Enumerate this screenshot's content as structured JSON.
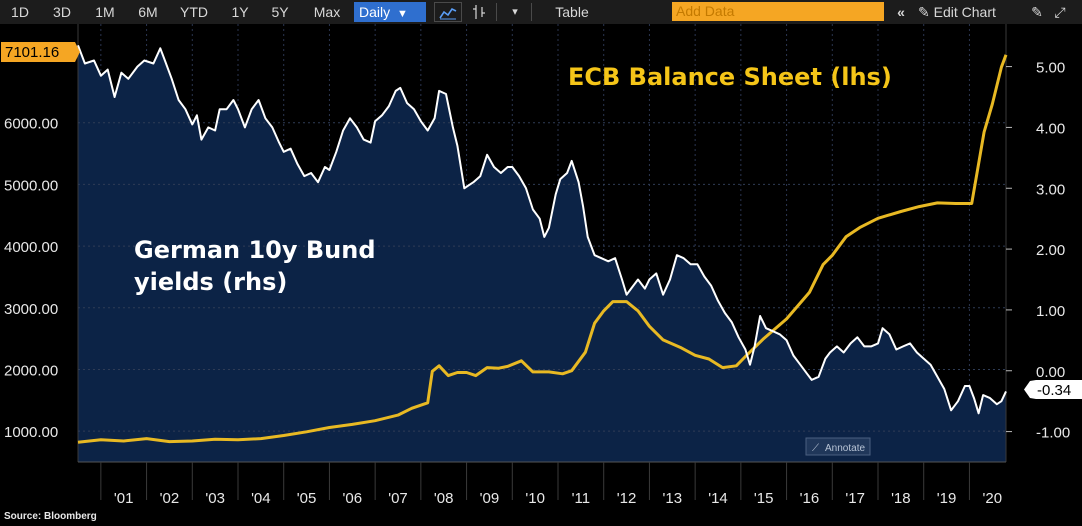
{
  "toolbar": {
    "ranges": [
      "1D",
      "3D",
      "1M",
      "6M",
      "YTD",
      "1Y",
      "5Y",
      "Max"
    ],
    "frequency": "Daily",
    "table_label": "Table",
    "add_data_placeholder": "Add Data",
    "edit_chart_label": "Edit Chart"
  },
  "colors": {
    "background": "#000000",
    "plot_fill": "#0c2346",
    "bund_line": "#ffffff",
    "ecb_line": "#e8b923",
    "last_price_label": "#f5a623"
  },
  "annotate_label": "Annotate",
  "source": "Source: Bloomberg",
  "chart_data": {
    "type": "line",
    "x_tick_labels": [
      "'01",
      "'02",
      "'03",
      "'04",
      "'05",
      "'06",
      "'07",
      "'08",
      "'09",
      "'10",
      "'11",
      "'12",
      "'13",
      "'14",
      "'15",
      "'16",
      "'17",
      "'18",
      "'19",
      "'20"
    ],
    "xlim": [
      2000.5,
      2020.8
    ],
    "y_left": {
      "ylim": [
        500,
        7600
      ],
      "ticks": [
        1000,
        2000,
        3000,
        4000,
        5000,
        6000
      ],
      "tick_labels": [
        "1000.00",
        "2000.00",
        "3000.00",
        "4000.00",
        "5000.00",
        "6000.00"
      ],
      "last_value_label": "7101.16"
    },
    "y_right": {
      "ylim": [
        -1.5,
        5.7
      ],
      "ticks": [
        -1,
        0,
        1,
        2,
        3,
        4,
        5
      ],
      "tick_labels": [
        "-1.00",
        "0.00",
        "1.00",
        "2.00",
        "3.00",
        "4.00",
        "5.00"
      ],
      "last_value_label": "-0.34"
    },
    "annotations": [
      {
        "text": "ECB Balance Sheet (lhs)",
        "color": "#f5c518"
      },
      {
        "text": "German 10y Bund",
        "color": "#ffffff"
      },
      {
        "text": "yields (rhs)",
        "color": "#ffffff"
      }
    ],
    "series": [
      {
        "axis": "right",
        "color": "#ffffff",
        "fill": "#0c2346",
        "points": [
          [
            2000.5,
            5.35
          ],
          [
            2000.65,
            5.05
          ],
          [
            2000.85,
            5.1
          ],
          [
            2001.0,
            4.85
          ],
          [
            2001.15,
            4.95
          ],
          [
            2001.3,
            4.5
          ],
          [
            2001.45,
            4.9
          ],
          [
            2001.6,
            4.8
          ],
          [
            2001.8,
            5.0
          ],
          [
            2001.95,
            5.1
          ],
          [
            2002.15,
            5.05
          ],
          [
            2002.3,
            5.3
          ],
          [
            2002.4,
            5.1
          ],
          [
            2002.55,
            4.8
          ],
          [
            2002.7,
            4.45
          ],
          [
            2002.85,
            4.3
          ],
          [
            2003.0,
            4.05
          ],
          [
            2003.1,
            4.2
          ],
          [
            2003.2,
            3.8
          ],
          [
            2003.35,
            4.0
          ],
          [
            2003.5,
            3.95
          ],
          [
            2003.6,
            4.3
          ],
          [
            2003.75,
            4.3
          ],
          [
            2003.9,
            4.45
          ],
          [
            2004.0,
            4.3
          ],
          [
            2004.15,
            4.0
          ],
          [
            2004.3,
            4.3
          ],
          [
            2004.45,
            4.45
          ],
          [
            2004.6,
            4.15
          ],
          [
            2004.75,
            4.0
          ],
          [
            2004.9,
            3.75
          ],
          [
            2005.0,
            3.6
          ],
          [
            2005.15,
            3.65
          ],
          [
            2005.3,
            3.4
          ],
          [
            2005.45,
            3.2
          ],
          [
            2005.6,
            3.25
          ],
          [
            2005.75,
            3.1
          ],
          [
            2005.9,
            3.35
          ],
          [
            2006.0,
            3.3
          ],
          [
            2006.15,
            3.6
          ],
          [
            2006.3,
            3.95
          ],
          [
            2006.45,
            4.15
          ],
          [
            2006.6,
            4.0
          ],
          [
            2006.75,
            3.8
          ],
          [
            2006.9,
            3.75
          ],
          [
            2007.0,
            4.1
          ],
          [
            2007.15,
            4.2
          ],
          [
            2007.3,
            4.35
          ],
          [
            2007.45,
            4.6
          ],
          [
            2007.55,
            4.65
          ],
          [
            2007.7,
            4.4
          ],
          [
            2007.85,
            4.3
          ],
          [
            2008.0,
            4.1
          ],
          [
            2008.15,
            3.95
          ],
          [
            2008.3,
            4.15
          ],
          [
            2008.4,
            4.6
          ],
          [
            2008.55,
            4.55
          ],
          [
            2008.7,
            4.0
          ],
          [
            2008.8,
            3.7
          ],
          [
            2008.95,
            3.0
          ],
          [
            2009.05,
            3.05
          ],
          [
            2009.15,
            3.1
          ],
          [
            2009.3,
            3.2
          ],
          [
            2009.45,
            3.55
          ],
          [
            2009.6,
            3.35
          ],
          [
            2009.75,
            3.25
          ],
          [
            2009.9,
            3.35
          ],
          [
            2010.0,
            3.35
          ],
          [
            2010.15,
            3.2
          ],
          [
            2010.3,
            3.0
          ],
          [
            2010.45,
            2.65
          ],
          [
            2010.6,
            2.5
          ],
          [
            2010.7,
            2.2
          ],
          [
            2010.8,
            2.35
          ],
          [
            2010.95,
            2.9
          ],
          [
            2011.05,
            3.15
          ],
          [
            2011.2,
            3.25
          ],
          [
            2011.3,
            3.45
          ],
          [
            2011.45,
            3.1
          ],
          [
            2011.55,
            2.7
          ],
          [
            2011.65,
            2.2
          ],
          [
            2011.8,
            1.9
          ],
          [
            2011.95,
            1.85
          ],
          [
            2012.1,
            1.8
          ],
          [
            2012.25,
            1.85
          ],
          [
            2012.4,
            1.5
          ],
          [
            2012.5,
            1.25
          ],
          [
            2012.6,
            1.35
          ],
          [
            2012.75,
            1.5
          ],
          [
            2012.9,
            1.35
          ],
          [
            2013.0,
            1.5
          ],
          [
            2013.15,
            1.6
          ],
          [
            2013.3,
            1.25
          ],
          [
            2013.45,
            1.5
          ],
          [
            2013.6,
            1.9
          ],
          [
            2013.75,
            1.85
          ],
          [
            2013.9,
            1.75
          ],
          [
            2014.05,
            1.75
          ],
          [
            2014.2,
            1.55
          ],
          [
            2014.35,
            1.4
          ],
          [
            2014.5,
            1.15
          ],
          [
            2014.65,
            0.95
          ],
          [
            2014.8,
            0.8
          ],
          [
            2014.95,
            0.55
          ],
          [
            2015.1,
            0.35
          ],
          [
            2015.2,
            0.1
          ],
          [
            2015.3,
            0.4
          ],
          [
            2015.42,
            0.9
          ],
          [
            2015.55,
            0.7
          ],
          [
            2015.7,
            0.65
          ],
          [
            2015.85,
            0.6
          ],
          [
            2016.0,
            0.5
          ],
          [
            2016.15,
            0.25
          ],
          [
            2016.3,
            0.1
          ],
          [
            2016.45,
            -0.05
          ],
          [
            2016.55,
            -0.15
          ],
          [
            2016.7,
            -0.1
          ],
          [
            2016.85,
            0.2
          ],
          [
            2016.95,
            0.3
          ],
          [
            2017.1,
            0.4
          ],
          [
            2017.25,
            0.3
          ],
          [
            2017.4,
            0.45
          ],
          [
            2017.55,
            0.55
          ],
          [
            2017.7,
            0.4
          ],
          [
            2017.85,
            0.4
          ],
          [
            2018.0,
            0.45
          ],
          [
            2018.1,
            0.7
          ],
          [
            2018.25,
            0.6
          ],
          [
            2018.4,
            0.35
          ],
          [
            2018.55,
            0.4
          ],
          [
            2018.7,
            0.45
          ],
          [
            2018.85,
            0.3
          ],
          [
            2019.0,
            0.2
          ],
          [
            2019.15,
            0.1
          ],
          [
            2019.3,
            -0.1
          ],
          [
            2019.45,
            -0.3
          ],
          [
            2019.6,
            -0.65
          ],
          [
            2019.75,
            -0.5
          ],
          [
            2019.9,
            -0.25
          ],
          [
            2020.0,
            -0.25
          ],
          [
            2020.1,
            -0.45
          ],
          [
            2020.2,
            -0.7
          ],
          [
            2020.3,
            -0.4
          ],
          [
            2020.45,
            -0.45
          ],
          [
            2020.6,
            -0.55
          ],
          [
            2020.7,
            -0.5
          ],
          [
            2020.8,
            -0.34
          ]
        ]
      },
      {
        "axis": "left",
        "color": "#e8b923",
        "points": [
          [
            2000.5,
            820
          ],
          [
            2001.0,
            860
          ],
          [
            2001.5,
            840
          ],
          [
            2002.0,
            880
          ],
          [
            2002.5,
            830
          ],
          [
            2003.0,
            840
          ],
          [
            2003.5,
            870
          ],
          [
            2004.0,
            860
          ],
          [
            2004.5,
            880
          ],
          [
            2005.0,
            930
          ],
          [
            2005.5,
            990
          ],
          [
            2006.0,
            1060
          ],
          [
            2006.5,
            1110
          ],
          [
            2007.0,
            1170
          ],
          [
            2007.5,
            1260
          ],
          [
            2007.8,
            1370
          ],
          [
            2008.15,
            1460
          ],
          [
            2008.25,
            1970
          ],
          [
            2008.4,
            2060
          ],
          [
            2008.6,
            1900
          ],
          [
            2008.8,
            1950
          ],
          [
            2009.0,
            1950
          ],
          [
            2009.2,
            1900
          ],
          [
            2009.45,
            2030
          ],
          [
            2009.7,
            2020
          ],
          [
            2009.9,
            2050
          ],
          [
            2010.2,
            2140
          ],
          [
            2010.45,
            1960
          ],
          [
            2010.8,
            1960
          ],
          [
            2011.1,
            1930
          ],
          [
            2011.3,
            1980
          ],
          [
            2011.6,
            2280
          ],
          [
            2011.8,
            2750
          ],
          [
            2012.0,
            2950
          ],
          [
            2012.2,
            3100
          ],
          [
            2012.5,
            3100
          ],
          [
            2012.75,
            2950
          ],
          [
            2013.0,
            2700
          ],
          [
            2013.3,
            2480
          ],
          [
            2013.7,
            2350
          ],
          [
            2014.0,
            2230
          ],
          [
            2014.3,
            2170
          ],
          [
            2014.6,
            2030
          ],
          [
            2014.9,
            2060
          ],
          [
            2015.1,
            2210
          ],
          [
            2015.5,
            2500
          ],
          [
            2016.0,
            2820
          ],
          [
            2016.5,
            3250
          ],
          [
            2016.8,
            3700
          ],
          [
            2017.0,
            3850
          ],
          [
            2017.3,
            4150
          ],
          [
            2017.6,
            4300
          ],
          [
            2018.0,
            4450
          ],
          [
            2018.5,
            4560
          ],
          [
            2018.9,
            4640
          ],
          [
            2019.3,
            4700
          ],
          [
            2019.7,
            4690
          ],
          [
            2020.05,
            4690
          ],
          [
            2020.18,
            5250
          ],
          [
            2020.32,
            5850
          ],
          [
            2020.5,
            6300
          ],
          [
            2020.7,
            6900
          ],
          [
            2020.8,
            7101.16
          ]
        ]
      }
    ]
  }
}
